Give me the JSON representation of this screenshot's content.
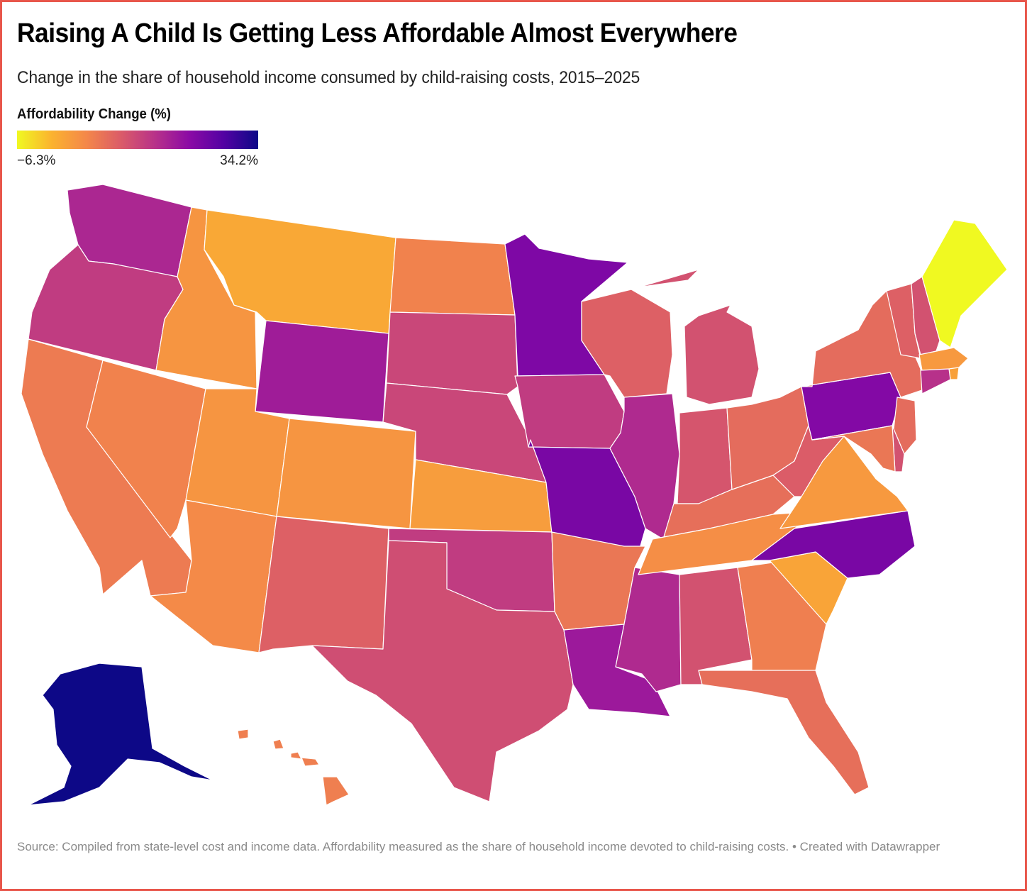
{
  "chart_data": {
    "type": "choropleth",
    "title": "Raising A Child Is Getting Less Affordable Almost Everywhere",
    "subtitle": "Change in the share of household income consumed by child-raising costs, 2015–2025",
    "legend": {
      "title": "Affordability Change (%)",
      "min": -6.3,
      "max": 34.2,
      "min_label": "−6.3%",
      "max_label": "34.2%",
      "colors": [
        "#f0f921",
        "#fbb32f",
        "#f48849",
        "#db5c68",
        "#b83289",
        "#8b0aa5",
        "#5302a3",
        "#0d0887"
      ]
    },
    "states": [
      {
        "id": "WA",
        "value": 18.5
      },
      {
        "id": "OR",
        "value": 15.5
      },
      {
        "id": "CA",
        "value": 7.0
      },
      {
        "id": "NV",
        "value": 6.0
      },
      {
        "id": "ID",
        "value": 3.5
      },
      {
        "id": "MT",
        "value": 1.0
      },
      {
        "id": "WY",
        "value": 20.0
      },
      {
        "id": "UT",
        "value": 3.5
      },
      {
        "id": "CO",
        "value": 3.5
      },
      {
        "id": "AZ",
        "value": 5.0
      },
      {
        "id": "NM",
        "value": 10.5
      },
      {
        "id": "ND",
        "value": 6.0
      },
      {
        "id": "SD",
        "value": 14.0
      },
      {
        "id": "NE",
        "value": 14.0
      },
      {
        "id": "KS",
        "value": 2.5
      },
      {
        "id": "OK",
        "value": 15.5
      },
      {
        "id": "TX",
        "value": 13.0
      },
      {
        "id": "MN",
        "value": 24.0
      },
      {
        "id": "IA",
        "value": 15.5
      },
      {
        "id": "MO",
        "value": 24.5
      },
      {
        "id": "AR",
        "value": 7.5
      },
      {
        "id": "LA",
        "value": 20.5
      },
      {
        "id": "WI",
        "value": 10.5
      },
      {
        "id": "IL",
        "value": 18.0
      },
      {
        "id": "MS",
        "value": 18.0
      },
      {
        "id": "MI",
        "value": 12.5
      },
      {
        "id": "IN",
        "value": 12.0
      },
      {
        "id": "KY",
        "value": 8.5
      },
      {
        "id": "TN",
        "value": 4.5
      },
      {
        "id": "AL",
        "value": 12.5
      },
      {
        "id": "OH",
        "value": 9.0
      },
      {
        "id": "WV",
        "value": 11.0
      },
      {
        "id": "GA",
        "value": 6.5
      },
      {
        "id": "FL",
        "value": 8.5
      },
      {
        "id": "SC",
        "value": 1.5
      },
      {
        "id": "NC",
        "value": 24.5
      },
      {
        "id": "VA",
        "value": 3.0
      },
      {
        "id": "PA",
        "value": 23.5
      },
      {
        "id": "NY",
        "value": 9.0
      },
      {
        "id": "VT",
        "value": 10.5
      },
      {
        "id": "NH",
        "value": 12.5
      },
      {
        "id": "ME",
        "value": -6.3
      },
      {
        "id": "MA",
        "value": 3.0
      },
      {
        "id": "RI",
        "value": 2.0
      },
      {
        "id": "CT",
        "value": 17.0
      },
      {
        "id": "NJ",
        "value": 9.0
      },
      {
        "id": "DE",
        "value": 12.5
      },
      {
        "id": "MD",
        "value": 7.5
      },
      {
        "id": "AK",
        "value": 34.2
      },
      {
        "id": "HI",
        "value": 6.5
      }
    ]
  },
  "footer": {
    "source": "Source: Compiled from state-level cost and income data. Affordability measured as the share of household income devoted to child-raising costs. • Created with Datawrapper"
  }
}
